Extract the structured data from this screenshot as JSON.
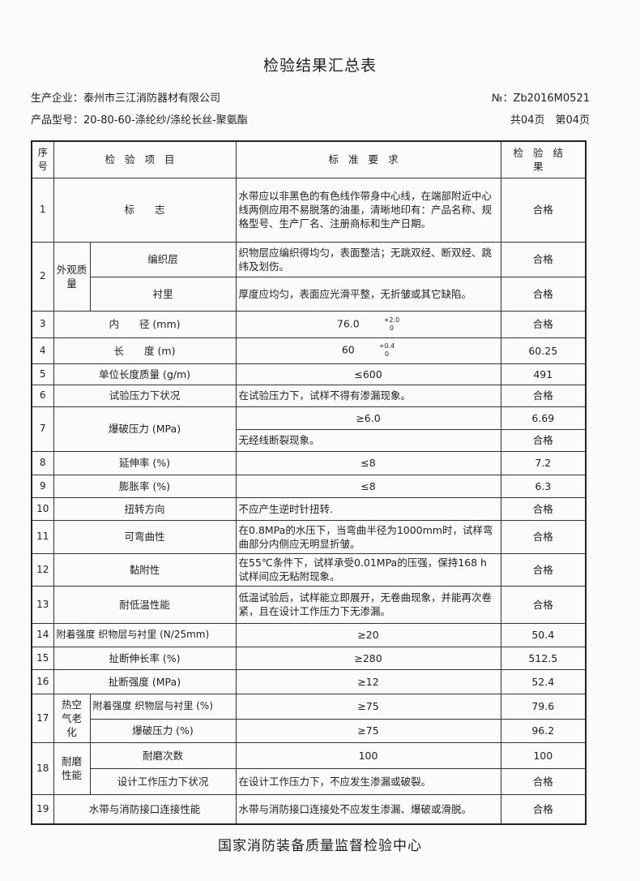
{
  "title": "检验结果汇总表",
  "manufacturer": "生产企业：泰州市三江消防器材有限公司",
  "report_no": "№：Zb2016M0521",
  "model": "产品型号：20-80-60-涤纶纱/涤纶长丝-聚氨酯",
  "pages": "共04页　第04页",
  "headers": {
    "seq": "序号",
    "item": "检验项目",
    "standard": "标准要求",
    "result": "检验结果"
  },
  "rows": {
    "r1": {
      "seq": "1",
      "item": "标　　志",
      "standard": "水带应以非黑色的有色线作带身中心线，在端部附近中心线两侧应用不易脱落的油墨，清晰地印有：产品名称、规格型号、生产厂名、注册商标和生产日期。",
      "result": "合格"
    },
    "r2": {
      "seq": "2",
      "group": "外观质量",
      "a_item": "编织层",
      "a_standard": "织物层应编织得均匀，表面整洁；无跳双经、断双经、跳纬及划伤。",
      "a_result": "合格",
      "b_item": "衬里",
      "b_standard": "厚度应均匀，表面应光滑平整，无折皱或其它缺陷。",
      "b_result": "合格"
    },
    "r3": {
      "seq": "3",
      "item": "内　　径 (mm)",
      "standard": "76.0",
      "tol_upper": "+2.0",
      "tol_lower": "0",
      "result": "合格"
    },
    "r4": {
      "seq": "4",
      "item": "长　　度 (m)",
      "standard": "60",
      "tol_upper": "+0.4",
      "tol_lower": "0",
      "result": "60.25"
    },
    "r5": {
      "seq": "5",
      "item": "单位长度质量 (g/m)",
      "standard": "≤600",
      "result": "491"
    },
    "r6": {
      "seq": "6",
      "item": "试验压力下状况",
      "standard": "在试验压力下，试样不得有渗漏现象。",
      "result": "合格"
    },
    "r7": {
      "seq": "7",
      "item": "爆破压力 (MPa)",
      "a_standard": "≥6.0",
      "a_result": "6.69",
      "b_standard": "无经线断裂现象。",
      "b_result": "合格"
    },
    "r8": {
      "seq": "8",
      "item": "延伸率 (%)",
      "standard": "≤8",
      "result": "7.2"
    },
    "r9": {
      "seq": "9",
      "item": "膨胀率 (%)",
      "standard": "≤8",
      "result": "6.3"
    },
    "r10": {
      "seq": "10",
      "item": "扭转方向",
      "standard": "不应产生逆时针扭转.",
      "result": "合格"
    },
    "r11": {
      "seq": "11",
      "item": "可弯曲性",
      "standard": "在0.8MPa的水压下，当弯曲半径为1000mm时，试样弯曲部分内侧应无明显折皱。",
      "result": "合格"
    },
    "r12": {
      "seq": "12",
      "item": "黏附性",
      "standard": "在55℃条件下，试样承受0.01MPa的压强，保持168 h 试样间应无粘附现象。",
      "result": "合格"
    },
    "r13": {
      "seq": "13",
      "item": "耐低温性能",
      "standard": "低温试验后，试样能立即展开，无卷曲现象，并能再次卷紧，且在设计工作压力下无渗漏。",
      "result": "合格"
    },
    "r14": {
      "seq": "14",
      "item": "附着强度 织物层与衬里 (N/25mm)",
      "standard": "≥20",
      "result": "50.4"
    },
    "r15": {
      "seq": "15",
      "item": "扯断伸长率 (%)",
      "standard": "≥280",
      "result": "512.5"
    },
    "r16": {
      "seq": "16",
      "item": "扯断强度 (MPa)",
      "standard": "≥12",
      "result": "52.4"
    },
    "r17": {
      "seq": "17",
      "group": "热空气老化",
      "a_item": "附着强度 织物层与衬里 (%)",
      "a_standard": "≥75",
      "a_result": "79.6",
      "b_item": "爆破压力 (%)",
      "b_standard": "≥75",
      "b_result": "96.2"
    },
    "r18": {
      "seq": "18",
      "group": "耐磨性能",
      "a_item": "耐磨次数",
      "a_standard": "100",
      "a_result": "100",
      "b_item": "设计工作压力下状况",
      "b_standard": "在设计工作压力下，不应发生渗漏或破裂。",
      "b_result": "合格"
    },
    "r19": {
      "seq": "19",
      "item": "水带与消防接口连接性能",
      "standard": "水带与消防接口连接处不应发生渗漏、爆破或滑脱。",
      "result": "合格"
    }
  },
  "footer": "国家消防装备质量监督检验中心"
}
